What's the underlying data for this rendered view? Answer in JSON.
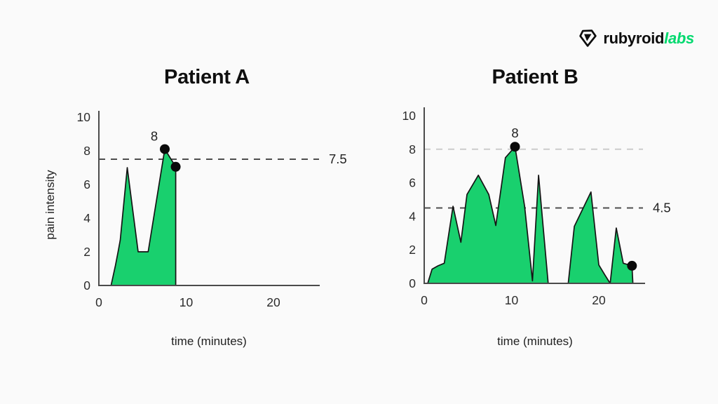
{
  "page": {
    "background": "#fafafa"
  },
  "logo": {
    "brand_black": "rubyroid",
    "brand_green": "labs",
    "icon": "gem-outline-icon",
    "green_color": "#00d96e",
    "black_color": "#0d0d0d"
  },
  "colors": {
    "area_fill": "#19d06e",
    "area_outline": "#141414",
    "axis": "#4b4b4b",
    "tick_text": "#2b2b2b",
    "dark_dash": "#4d4d4d",
    "light_dash": "#cccccc",
    "marker": "#0a0a0a",
    "annotation_text": "#222222"
  },
  "chart_data": [
    {
      "type": "area",
      "title": "Patient A",
      "xlabel": "time (minutes)",
      "ylabel": "pain intensity",
      "xlim": [
        0,
        25
      ],
      "ylim": [
        0,
        10
      ],
      "xticks": [
        0,
        10,
        20
      ],
      "yticks": [
        0,
        2,
        4,
        6,
        8,
        10
      ],
      "grid": false,
      "points": [
        [
          1.4,
          0
        ],
        [
          1.9,
          1.2
        ],
        [
          2.2,
          2.0
        ],
        [
          2.45,
          2.7
        ],
        [
          3.25,
          7.0
        ],
        [
          4.5,
          2.0
        ],
        [
          5.65,
          2.0
        ],
        [
          7.55,
          8.1
        ],
        [
          8.8,
          7.05
        ],
        [
          8.8,
          0
        ]
      ],
      "markers": [
        {
          "x": 7.55,
          "y": 8.1,
          "label": "8"
        },
        {
          "x": 8.8,
          "y": 7.05,
          "label": ""
        }
      ],
      "ref_lines": [
        {
          "y": 7.5,
          "label": "7.5",
          "variant": "dark"
        }
      ]
    },
    {
      "type": "area",
      "title": "Patient B",
      "xlabel": "time (minutes)",
      "ylabel": "",
      "xlim": [
        0,
        25
      ],
      "ylim": [
        0,
        10
      ],
      "xticks": [
        0,
        10,
        20
      ],
      "yticks": [
        0,
        2,
        4,
        6,
        8,
        10
      ],
      "grid": false,
      "points": [
        [
          0.4,
          0
        ],
        [
          0.9,
          0.85
        ],
        [
          1.6,
          1.05
        ],
        [
          2.3,
          1.2
        ],
        [
          3.3,
          4.6
        ],
        [
          4.2,
          2.45
        ],
        [
          4.9,
          5.3
        ],
        [
          6.2,
          6.45
        ],
        [
          7.4,
          5.3
        ],
        [
          8.2,
          3.45
        ],
        [
          9.3,
          7.5
        ],
        [
          10.4,
          8.15
        ],
        [
          11.5,
          4.6
        ],
        [
          12.4,
          0.15
        ],
        [
          13.1,
          6.45
        ],
        [
          14.2,
          0
        ],
        [
          16.5,
          0
        ],
        [
          17.2,
          3.4
        ],
        [
          19.1,
          5.45
        ],
        [
          20.0,
          1.1
        ],
        [
          20.7,
          0.5
        ],
        [
          21.3,
          0
        ],
        [
          22.0,
          3.3
        ],
        [
          22.8,
          1.2
        ],
        [
          23.8,
          1.05
        ],
        [
          23.9,
          0
        ]
      ],
      "markers": [
        {
          "x": 10.4,
          "y": 8.15,
          "label": "8"
        },
        {
          "x": 23.8,
          "y": 1.05,
          "label": ""
        }
      ],
      "ref_lines": [
        {
          "y": 8,
          "label": "",
          "variant": "light"
        },
        {
          "y": 4.5,
          "label": "4.5",
          "variant": "dark"
        }
      ]
    }
  ]
}
